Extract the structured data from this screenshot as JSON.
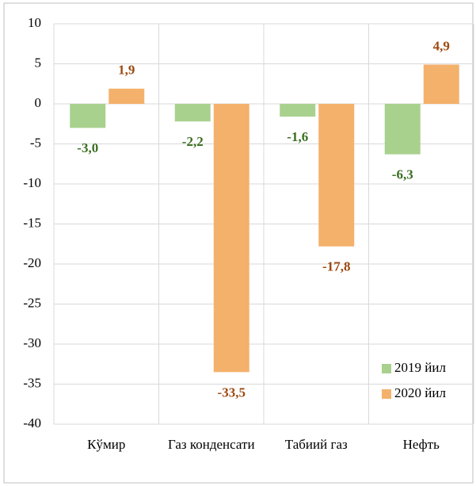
{
  "chart_data": {
    "type": "bar",
    "categories": [
      "Кўмир",
      "Газ конденсати",
      "Табиий газ",
      "Нефть"
    ],
    "series": [
      {
        "name": "2019 йил",
        "color": "#a9d18e",
        "label_color": "#3b6e22",
        "values": [
          -3.0,
          -2.2,
          -1.6,
          -6.3
        ],
        "value_labels": [
          "-3,0",
          "-2,2",
          "-1,6",
          "-6,3"
        ]
      },
      {
        "name": "2020 йил",
        "color": "#f4b16b",
        "label_color": "#9c4a12",
        "values": [
          1.9,
          -33.5,
          -17.8,
          4.9
        ],
        "value_labels": [
          "1,9",
          "-33,5",
          "-17,8",
          "4,9"
        ]
      }
    ],
    "ylim": [
      -40,
      10
    ],
    "yticks": [
      10,
      5,
      0,
      -5,
      -10,
      -15,
      -20,
      -25,
      -30,
      -35,
      -40
    ],
    "grid": true,
    "legend": "lower right"
  }
}
